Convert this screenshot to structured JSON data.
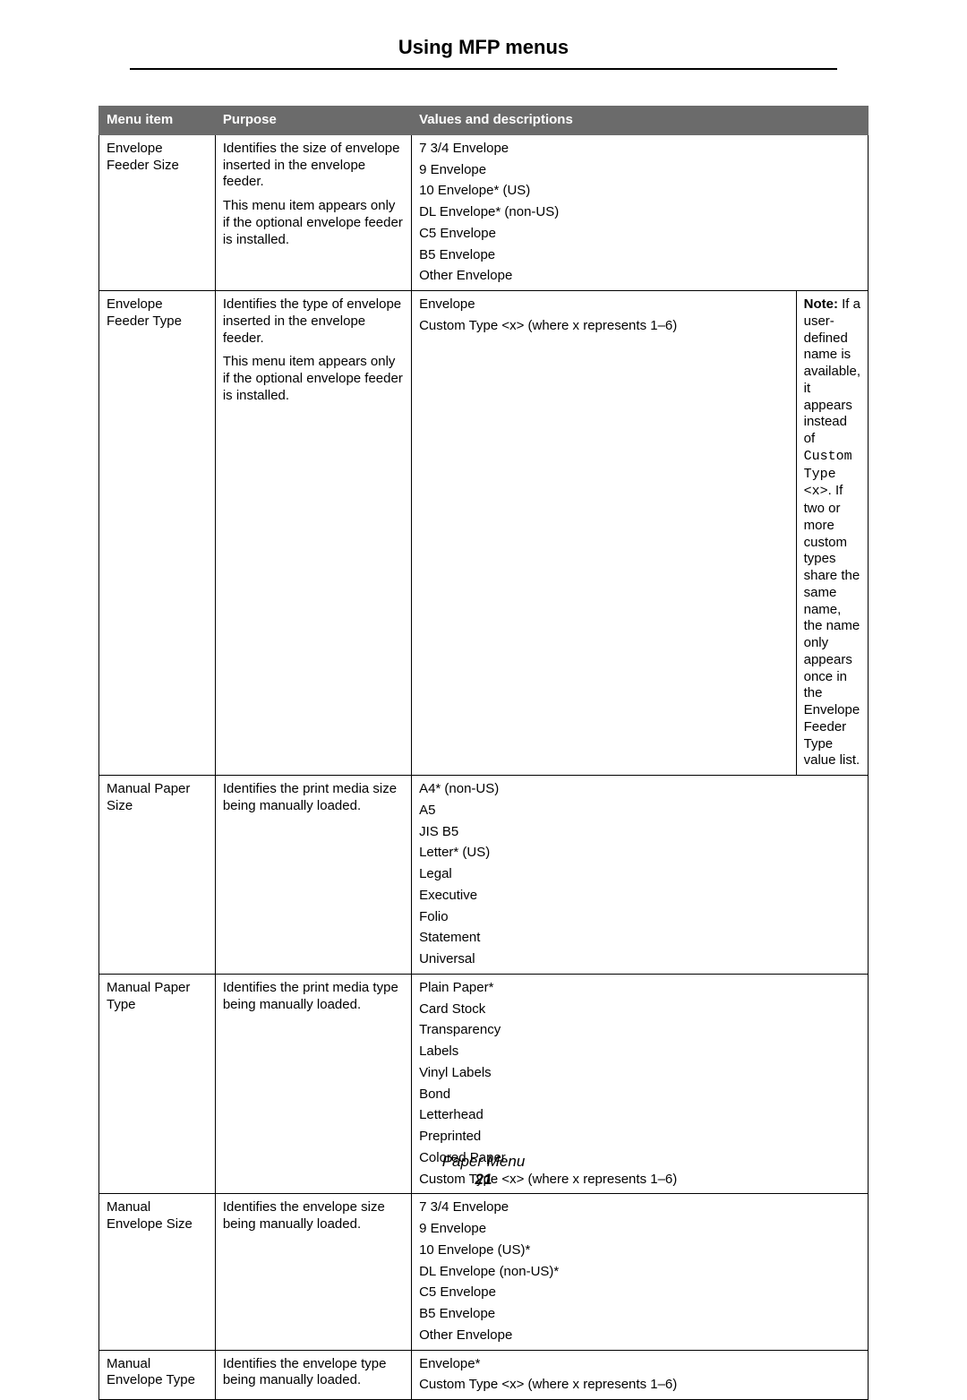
{
  "page": {
    "title": "Using MFP menus",
    "footer_section": "Paper Menu",
    "footer_page": "21"
  },
  "colors": {
    "header_bg": "#6b6b6b",
    "header_text": "#ffffff",
    "border": "#000000",
    "page_bg": "#ffffff",
    "text": "#000000"
  },
  "table": {
    "columns": [
      "Menu item",
      "Purpose",
      "Values and descriptions"
    ],
    "col_widths_pct": [
      16,
      28,
      56
    ],
    "rows": [
      {
        "menu_item": "Envelope Feeder Size",
        "purpose": [
          "Identifies the size of envelope inserted in the envelope feeder.",
          "This menu item appears only if the optional envelope feeder is installed."
        ],
        "values_colspan": 2,
        "values": [
          "7 3/4 Envelope",
          "9 Envelope",
          "10 Envelope* (US)",
          "DL Envelope* (non-US)",
          "C5 Envelope",
          "B5 Envelope",
          "Other Envelope"
        ]
      },
      {
        "menu_item": "Envelope Feeder Type",
        "purpose": [
          "Identifies the type of envelope inserted in the envelope feeder.",
          "This menu item appears only if the optional envelope feeder is installed."
        ],
        "values_split": {
          "left": [
            "Envelope",
            "Custom Type <x> (where x represents 1–6)"
          ],
          "note": {
            "bold_label": "Note:",
            "pre_mono": " If a user-defined name is available, it appears instead of ",
            "mono": "Custom Type <x>",
            "post_mono": ". If two or more custom types share the same name, the name only appears once in the Envelope Feeder Type value list."
          }
        }
      },
      {
        "menu_item": "Manual Paper Size",
        "purpose": [
          "Identifies the print media size being manually loaded."
        ],
        "values_colspan": 2,
        "values": [
          "A4* (non-US)",
          "A5",
          "JIS B5",
          "Letter* (US)",
          "Legal",
          "Executive",
          "Folio",
          "Statement",
          "Universal"
        ]
      },
      {
        "menu_item": "Manual Paper Type",
        "purpose": [
          "Identifies the print media type being manually loaded."
        ],
        "values_colspan": 2,
        "values": [
          "Plain Paper*",
          "Card Stock",
          "Transparency",
          "Labels",
          "Vinyl Labels",
          "Bond",
          "Letterhead",
          "Preprinted",
          "Colored Paper",
          "Custom Type <x> (where x represents 1–6)"
        ]
      },
      {
        "menu_item": "Manual Envelope Size",
        "purpose": [
          "Identifies the envelope size being manually loaded."
        ],
        "values_colspan": 2,
        "values": [
          "7 3/4 Envelope",
          "9 Envelope",
          "10 Envelope (US)*",
          "DL Envelope (non-US)*",
          "C5 Envelope",
          "B5 Envelope",
          "Other Envelope"
        ]
      },
      {
        "menu_item": "Manual Envelope Type",
        "purpose": [
          "Identifies the envelope type being manually loaded."
        ],
        "values_colspan": 2,
        "values": [
          "Envelope*",
          "Custom Type <x> (where x represents 1–6)"
        ]
      }
    ]
  }
}
